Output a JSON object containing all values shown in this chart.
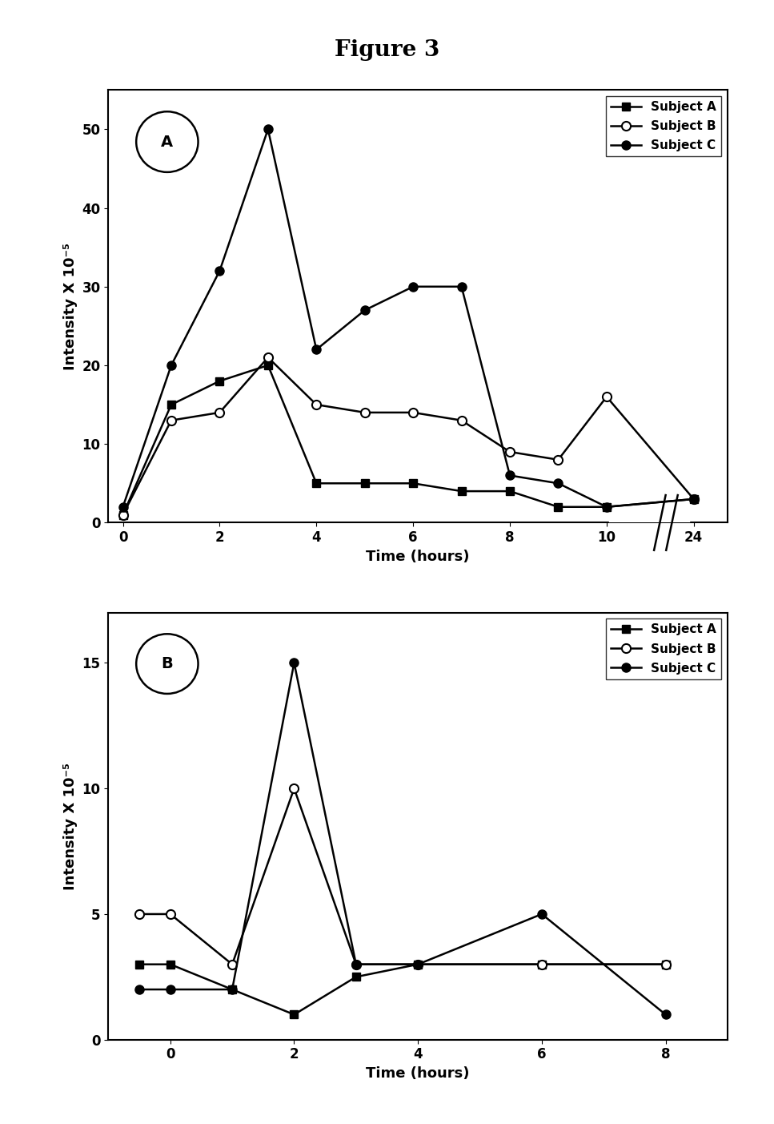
{
  "title": "Figure 3",
  "panel_A": {
    "label": "A",
    "x_all": [
      0,
      1,
      2,
      3,
      4,
      5,
      6,
      7,
      8,
      9,
      10,
      24
    ],
    "subject_A_y": [
      1,
      15,
      18,
      20,
      5,
      5,
      5,
      4,
      4,
      2,
      2,
      3
    ],
    "subject_B_y": [
      1,
      13,
      14,
      21,
      15,
      14,
      14,
      13,
      9,
      8,
      16,
      3
    ],
    "subject_C_y": [
      2,
      20,
      32,
      50,
      22,
      27,
      30,
      30,
      6,
      5,
      2,
      3
    ],
    "ylabel": "Intensity X 10⁻⁵",
    "xlabel": "Time (hours)",
    "yticks": [
      0,
      10,
      20,
      30,
      40,
      50
    ],
    "ylim": [
      0,
      55
    ],
    "xtick_positions": [
      0,
      2,
      4,
      6,
      8,
      10,
      11.8
    ],
    "xtick_labels": [
      "0",
      "2",
      "4",
      "6",
      "8",
      "10",
      "24"
    ],
    "xlim": [
      -0.3,
      12.5
    ]
  },
  "panel_B": {
    "label": "B",
    "x": [
      -0.5,
      0,
      1,
      2,
      3,
      4,
      6,
      8
    ],
    "subject_A_y": [
      3.0,
      3.0,
      2.0,
      1.0,
      2.5,
      3.0,
      3.0,
      3.0
    ],
    "subject_B_y": [
      5.0,
      5.0,
      3.0,
      10.0,
      3.0,
      3.0,
      3.0,
      3.0
    ],
    "subject_C_y": [
      2.0,
      2.0,
      2.0,
      15.0,
      3.0,
      3.0,
      5.0,
      1.0
    ],
    "ylabel": "Intensity X 10⁻⁵",
    "xlabel": "Time (hours)",
    "yticks": [
      0,
      5,
      10,
      15
    ],
    "xticks": [
      0,
      2,
      4,
      6,
      8
    ],
    "ylim": [
      0,
      17
    ],
    "xlim": [
      -1.0,
      9.0
    ]
  },
  "legend_labels": [
    "Subject A",
    "Subject B",
    "Subject C"
  ],
  "bg_color": "#ffffff",
  "title_fontsize": 20,
  "label_fontsize": 13,
  "tick_fontsize": 12,
  "legend_fontsize": 11
}
